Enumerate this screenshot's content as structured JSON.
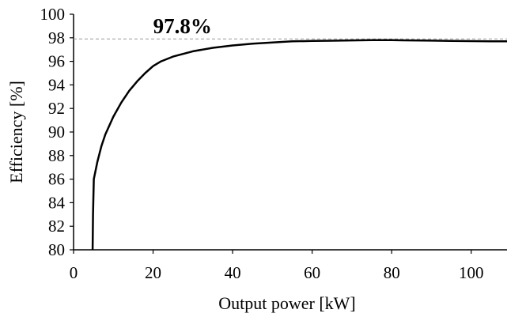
{
  "chart_data": {
    "type": "line",
    "title": "",
    "xlabel": "Output power [kW]",
    "ylabel": "Efficiency [%]",
    "xlim": [
      0,
      109
    ],
    "ylim": [
      80,
      100
    ],
    "x_ticks": [
      0,
      20,
      40,
      60,
      80,
      100
    ],
    "y_ticks": [
      80,
      82,
      84,
      86,
      88,
      90,
      92,
      94,
      96,
      98,
      100
    ],
    "grid": false,
    "legend": "none",
    "series": [
      {
        "color": "#000000",
        "points": [
          [
            4.8,
            80.0
          ],
          [
            4.9,
            83.0
          ],
          [
            5.1,
            86.0
          ],
          [
            6,
            87.5
          ],
          [
            7,
            88.8
          ],
          [
            8,
            89.8
          ],
          [
            10,
            91.3
          ],
          [
            12,
            92.5
          ],
          [
            14,
            93.5
          ],
          [
            16,
            94.3
          ],
          [
            18,
            95.0
          ],
          [
            20,
            95.6
          ],
          [
            22,
            96.0
          ],
          [
            25,
            96.4
          ],
          [
            30,
            96.85
          ],
          [
            35,
            97.15
          ],
          [
            40,
            97.35
          ],
          [
            45,
            97.5
          ],
          [
            50,
            97.6
          ],
          [
            55,
            97.7
          ],
          [
            60,
            97.73
          ],
          [
            65,
            97.75
          ],
          [
            70,
            97.78
          ],
          [
            75,
            97.8
          ],
          [
            80,
            97.8
          ],
          [
            85,
            97.78
          ],
          [
            90,
            97.76
          ],
          [
            95,
            97.74
          ],
          [
            100,
            97.72
          ],
          [
            105,
            97.7
          ],
          [
            109,
            97.7
          ]
        ]
      }
    ],
    "reference_line": {
      "y": 97.9,
      "color": "#999999",
      "style": "dashed"
    },
    "annotation": {
      "text": "97.8%",
      "x": 21,
      "y": 98.0
    }
  }
}
